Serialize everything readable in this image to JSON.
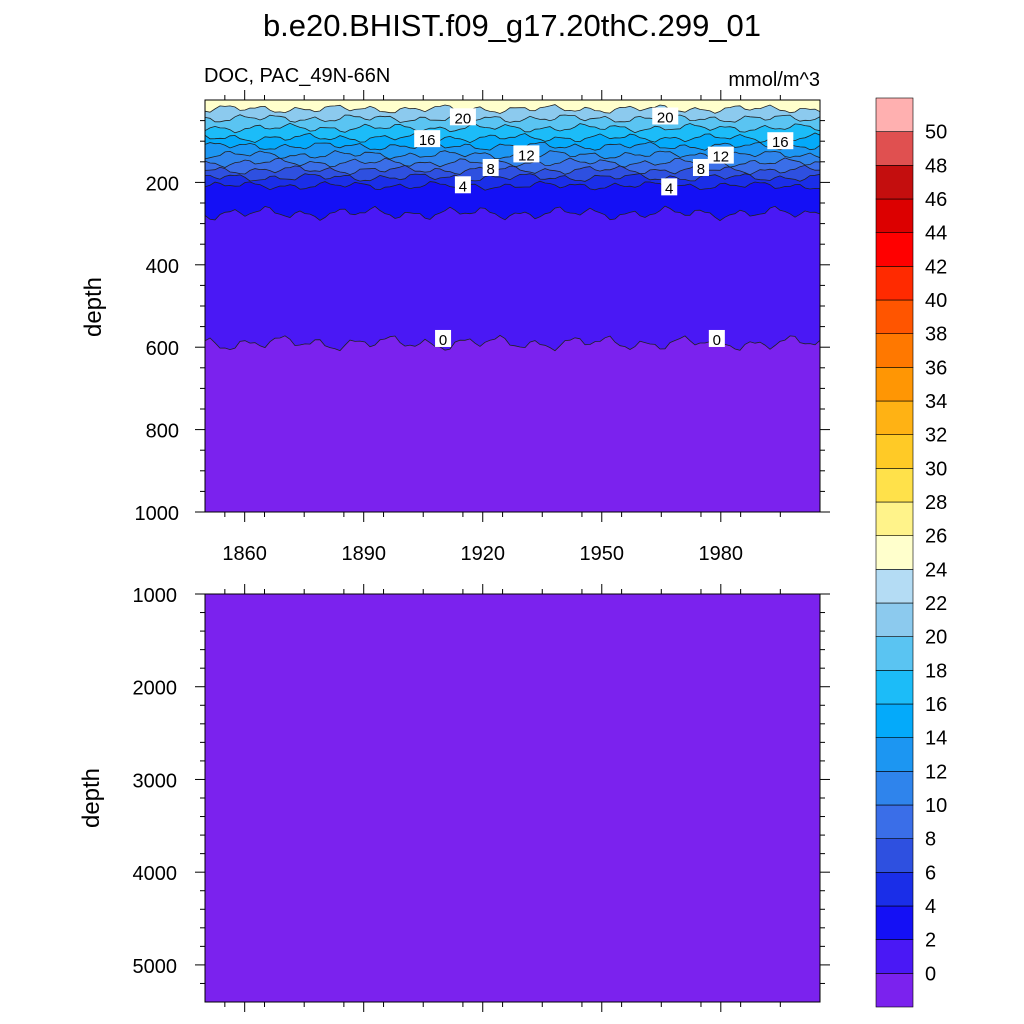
{
  "title": "b.e20.BHIST.f09_g17.20thC.299_01",
  "chart_data": [
    {
      "type": "heatmap",
      "panel": "upper",
      "left_label": "DOC, PAC_49N-66N",
      "right_label": "mmol/m^3",
      "ylabel": "depth",
      "ylim": [
        1000,
        0
      ],
      "yticks": [
        200,
        400,
        600,
        800,
        1000
      ],
      "xlim": [
        1850,
        2005
      ],
      "xticks": [
        1860,
        1890,
        1920,
        1950,
        1980
      ],
      "contour_depths": [
        {
          "level": 22,
          "depth": 22
        },
        {
          "level": 20,
          "depth": 45
        },
        {
          "level": 18,
          "depth": 68
        },
        {
          "level": 16,
          "depth": 92
        },
        {
          "level": 14,
          "depth": 112
        },
        {
          "level": 12,
          "depth": 133
        },
        {
          "level": 10,
          "depth": 152
        },
        {
          "level": 8,
          "depth": 170
        },
        {
          "level": 6,
          "depth": 188
        },
        {
          "level": 4,
          "depth": 208
        },
        {
          "level": 2,
          "depth": 275
        },
        {
          "level": 0,
          "depth": 590
        }
      ],
      "contour_labels": [
        {
          "text": "20",
          "x": 1915,
          "depth": 42
        },
        {
          "text": "20",
          "x": 1966,
          "depth": 40
        },
        {
          "text": "16",
          "x": 1906,
          "depth": 95
        },
        {
          "text": "16",
          "x": 1995,
          "depth": 100
        },
        {
          "text": "12",
          "x": 1931,
          "depth": 132
        },
        {
          "text": "12",
          "x": 1980,
          "depth": 135
        },
        {
          "text": "8",
          "x": 1922,
          "depth": 165
        },
        {
          "text": "8",
          "x": 1975,
          "depth": 165
        },
        {
          "text": "4",
          "x": 1915,
          "depth": 207
        },
        {
          "text": "4",
          "x": 1967,
          "depth": 212
        },
        {
          "text": "0",
          "x": 1910,
          "depth": 580
        },
        {
          "text": "0",
          "x": 1979,
          "depth": 580
        }
      ]
    },
    {
      "type": "heatmap",
      "panel": "lower",
      "ylabel": "depth",
      "ylim": [
        1000,
        5400
      ],
      "yticks": [
        1000,
        2000,
        3000,
        4000,
        5000
      ],
      "xlim": [
        1850,
        2005
      ],
      "value": 0
    }
  ],
  "colorbar": {
    "levels": [
      "0",
      "2",
      "4",
      "6",
      "8",
      "10",
      "12",
      "14",
      "16",
      "18",
      "20",
      "22",
      "24",
      "26",
      "28",
      "30",
      "32",
      "34",
      "36",
      "38",
      "40",
      "42",
      "44",
      "46",
      "48",
      "50"
    ],
    "colors": [
      "#7b22ee",
      "#4a18f5",
      "#1410f5",
      "#1a2ee8",
      "#2e50e0",
      "#3a6ee8",
      "#2f84ec",
      "#1c96f2",
      "#04aafa",
      "#1cbcf8",
      "#5ac4f2",
      "#8ccaee",
      "#b4dcf4",
      "#ffffcc",
      "#fff38a",
      "#ffe14a",
      "#ffca26",
      "#ffb214",
      "#ff9604",
      "#ff7800",
      "#ff5500",
      "#ff2a00",
      "#ff0000",
      "#dc0000",
      "#c40e0e",
      "#e05050",
      "#ffb0b0"
    ]
  }
}
